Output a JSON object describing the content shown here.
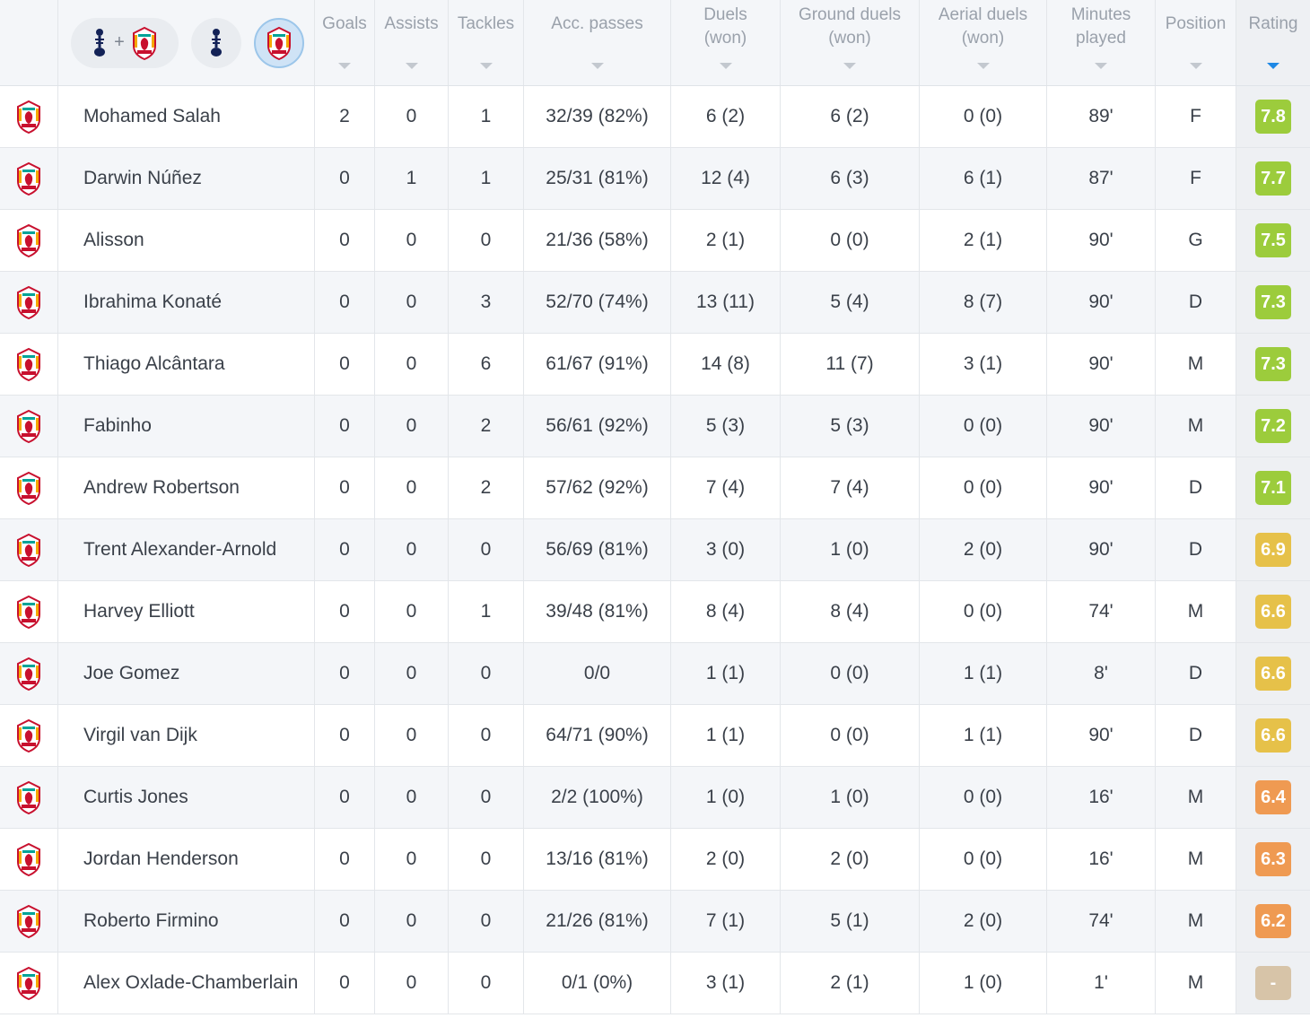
{
  "header": {
    "filters": [
      "spurs-plus-liverpool-filter",
      "spurs-filter",
      "liverpool-filter"
    ],
    "plus": "+",
    "columns": [
      {
        "key": "goals",
        "label": "Goals"
      },
      {
        "key": "assists",
        "label": "Assists"
      },
      {
        "key": "tackles",
        "label": "Tackles"
      },
      {
        "key": "passes",
        "label": "Acc. passes"
      },
      {
        "key": "duels",
        "label": "Duels\n(won)"
      },
      {
        "key": "ground",
        "label": "Ground duels\n(won)"
      },
      {
        "key": "aerial",
        "label": "Aerial duels\n(won)"
      },
      {
        "key": "minutes",
        "label": "Minutes\nplayed"
      },
      {
        "key": "position",
        "label": "Position"
      },
      {
        "key": "rating",
        "label": "Rating"
      }
    ],
    "sorted_column": "rating"
  },
  "colors": {
    "rating_green": "#9ccc3c",
    "rating_yellow": "#e6c149",
    "rating_orange": "#ef9a52",
    "rating_none": "#d7c4a8",
    "sort_active": "#1e88e5"
  },
  "players": [
    {
      "name": "Mohamed Salah",
      "goals": "2",
      "assists": "0",
      "tackles": "1",
      "passes": "32/39 (82%)",
      "duels": "6 (2)",
      "ground": "6 (2)",
      "aerial": "0 (0)",
      "minutes": "89'",
      "position": "F",
      "rating": "7.8",
      "rating_tier": "green"
    },
    {
      "name": "Darwin Núñez",
      "goals": "0",
      "assists": "1",
      "tackles": "1",
      "passes": "25/31 (81%)",
      "duels": "12 (4)",
      "ground": "6 (3)",
      "aerial": "6 (1)",
      "minutes": "87'",
      "position": "F",
      "rating": "7.7",
      "rating_tier": "green"
    },
    {
      "name": "Alisson",
      "goals": "0",
      "assists": "0",
      "tackles": "0",
      "passes": "21/36 (58%)",
      "duels": "2 (1)",
      "ground": "0 (0)",
      "aerial": "2 (1)",
      "minutes": "90'",
      "position": "G",
      "rating": "7.5",
      "rating_tier": "green"
    },
    {
      "name": "Ibrahima Konaté",
      "goals": "0",
      "assists": "0",
      "tackles": "3",
      "passes": "52/70 (74%)",
      "duels": "13 (11)",
      "ground": "5 (4)",
      "aerial": "8 (7)",
      "minutes": "90'",
      "position": "D",
      "rating": "7.3",
      "rating_tier": "green"
    },
    {
      "name": "Thiago Alcântara",
      "goals": "0",
      "assists": "0",
      "tackles": "6",
      "passes": "61/67 (91%)",
      "duels": "14 (8)",
      "ground": "11 (7)",
      "aerial": "3 (1)",
      "minutes": "90'",
      "position": "M",
      "rating": "7.3",
      "rating_tier": "green"
    },
    {
      "name": "Fabinho",
      "goals": "0",
      "assists": "0",
      "tackles": "2",
      "passes": "56/61 (92%)",
      "duels": "5 (3)",
      "ground": "5 (3)",
      "aerial": "0 (0)",
      "minutes": "90'",
      "position": "M",
      "rating": "7.2",
      "rating_tier": "green"
    },
    {
      "name": "Andrew Robertson",
      "goals": "0",
      "assists": "0",
      "tackles": "2",
      "passes": "57/62 (92%)",
      "duels": "7 (4)",
      "ground": "7 (4)",
      "aerial": "0 (0)",
      "minutes": "90'",
      "position": "D",
      "rating": "7.1",
      "rating_tier": "green"
    },
    {
      "name": "Trent Alexander-Arnold",
      "goals": "0",
      "assists": "0",
      "tackles": "0",
      "passes": "56/69 (81%)",
      "duels": "3 (0)",
      "ground": "1 (0)",
      "aerial": "2 (0)",
      "minutes": "90'",
      "position": "D",
      "rating": "6.9",
      "rating_tier": "yellow"
    },
    {
      "name": "Harvey Elliott",
      "goals": "0",
      "assists": "0",
      "tackles": "1",
      "passes": "39/48 (81%)",
      "duels": "8 (4)",
      "ground": "8 (4)",
      "aerial": "0 (0)",
      "minutes": "74'",
      "position": "M",
      "rating": "6.6",
      "rating_tier": "yellow"
    },
    {
      "name": "Joe Gomez",
      "goals": "0",
      "assists": "0",
      "tackles": "0",
      "passes": "0/0",
      "duels": "1 (1)",
      "ground": "0 (0)",
      "aerial": "1 (1)",
      "minutes": "8'",
      "position": "D",
      "rating": "6.6",
      "rating_tier": "yellow"
    },
    {
      "name": "Virgil van Dijk",
      "goals": "0",
      "assists": "0",
      "tackles": "0",
      "passes": "64/71 (90%)",
      "duels": "1 (1)",
      "ground": "0 (0)",
      "aerial": "1 (1)",
      "minutes": "90'",
      "position": "D",
      "rating": "6.6",
      "rating_tier": "yellow"
    },
    {
      "name": "Curtis Jones",
      "goals": "0",
      "assists": "0",
      "tackles": "0",
      "passes": "2/2 (100%)",
      "duels": "1 (0)",
      "ground": "1 (0)",
      "aerial": "0 (0)",
      "minutes": "16'",
      "position": "M",
      "rating": "6.4",
      "rating_tier": "orange"
    },
    {
      "name": "Jordan Henderson",
      "goals": "0",
      "assists": "0",
      "tackles": "0",
      "passes": "13/16 (81%)",
      "duels": "2 (0)",
      "ground": "2 (0)",
      "aerial": "0 (0)",
      "minutes": "16'",
      "position": "M",
      "rating": "6.3",
      "rating_tier": "orange"
    },
    {
      "name": "Roberto Firmino",
      "goals": "0",
      "assists": "0",
      "tackles": "0",
      "passes": "21/26 (81%)",
      "duels": "7 (1)",
      "ground": "5 (1)",
      "aerial": "2 (0)",
      "minutes": "74'",
      "position": "M",
      "rating": "6.2",
      "rating_tier": "orange"
    },
    {
      "name": "Alex Oxlade-Chamberlain",
      "goals": "0",
      "assists": "0",
      "tackles": "0",
      "passes": "0/1 (0%)",
      "duels": "3 (1)",
      "ground": "2 (1)",
      "aerial": "1 (0)",
      "minutes": "1'",
      "position": "M",
      "rating": "-",
      "rating_tier": "none"
    }
  ]
}
